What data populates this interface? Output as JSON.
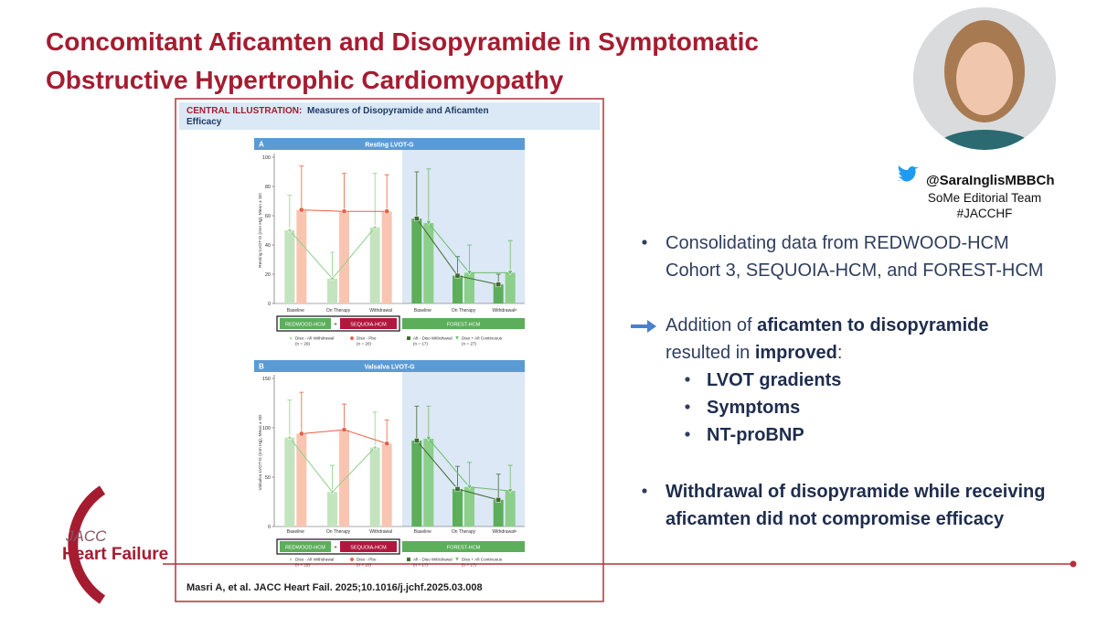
{
  "slide": {
    "title_lines": [
      "Concomitant Aficamten and Disopyramide in Symptomatic",
      "Obstructive Hypertrophic Cardiomyopathy"
    ],
    "author": {
      "handle": "@SaraInglisMBBCh",
      "team": "SoMe Editorial Team",
      "hashtag": "#JACCHF"
    },
    "bullets": [
      {
        "marker": "bullet",
        "lines": [
          [
            {
              "text": "Consolidating data from REDWOOD-HCM"
            }
          ],
          [
            {
              "text": "Cohort 3, SEQUOIA-HCM, and FOREST-HCM"
            }
          ]
        ]
      },
      {
        "marker": "arrow",
        "lines": [
          [
            {
              "text": "Addition of "
            },
            {
              "text": "aficamten to disopyramide",
              "bold": true
            }
          ],
          [
            {
              "text": "resulted in "
            },
            {
              "text": "improved",
              "bold": true
            },
            {
              "text": ":"
            }
          ]
        ]
      },
      {
        "marker": "sub",
        "lines": [
          [
            {
              "text": "LVOT gradients",
              "bold": true
            }
          ]
        ]
      },
      {
        "marker": "sub",
        "lines": [
          [
            {
              "text": "Symptoms",
              "bold": true
            }
          ]
        ]
      },
      {
        "marker": "sub",
        "lines": [
          [
            {
              "text": "NT-proBNP",
              "bold": true
            }
          ]
        ]
      },
      {
        "marker": "bullet",
        "lines": [
          [
            {
              "text": "Withdrawal of disopyramide while receiving",
              "bold": true
            }
          ],
          [
            {
              "text": "aficamten did not compromise efficacy",
              "bold": true
            }
          ]
        ]
      }
    ],
    "logo": {
      "top": "JACC",
      "bottom": "Heart Failure"
    }
  },
  "illustration": {
    "label": "CENTRAL ILLUSTRATION:",
    "title_lines": [
      "Measures of Disopyramide and Aficamten",
      "Efficacy"
    ],
    "citation": "Masri A, et al. JACC Heart Fail. 2025;10.1016/j.jchf.2025.03.008"
  },
  "chart_data": [
    {
      "type": "bar",
      "panel": "A",
      "title": "Resting LVOT-G",
      "ylabel": "Resting LVOT-G (mm Hg), Mean ± SD",
      "categories": [
        "Baseline",
        "On Therapy",
        "Withdrawal",
        "Baseline",
        "On Therapy",
        "Withdrawalᵃ"
      ],
      "ylim": [
        0,
        100
      ],
      "yticks": [
        0,
        20,
        40,
        60,
        80,
        100
      ],
      "groups": {
        "left": [
          "REDWOOD-HCM",
          "SEQUOIA-HCM"
        ],
        "joiner": "+",
        "right": "FOREST-HCM"
      },
      "series": [
        {
          "name": "Diso - Afi Withdrawal",
          "n": "(n = 29)",
          "color": "#8fd08a",
          "bar_color": "#c4e3bf",
          "marker": "star",
          "values": [
            50,
            17,
            52,
            null,
            null,
            null
          ],
          "errors": [
            24,
            18,
            37,
            null,
            null,
            null
          ]
        },
        {
          "name": "Diso - Pbo",
          "n": "(n = 20)",
          "color": "#e8604a",
          "bar_color": "#f9c5b1",
          "marker": "circle",
          "values": [
            64,
            63,
            63,
            null,
            null,
            null
          ],
          "errors": [
            30,
            26,
            25,
            null,
            null,
            null
          ]
        },
        {
          "name": "Afi - Diso Withdrawal",
          "n": "(n = 17)",
          "color": "#3f6b2e",
          "bar_color": "#5dae5b",
          "marker": "square",
          "values": [
            null,
            null,
            null,
            58,
            19,
            13
          ],
          "errors": [
            null,
            null,
            null,
            32,
            13,
            7
          ]
        },
        {
          "name": "Diso + Afi Continuous",
          "n": "(n = 27)",
          "color": "#6dbd6d",
          "bar_color": "#8ccf8a",
          "marker": "triangle",
          "values": [
            null,
            null,
            null,
            55,
            21,
            21
          ],
          "errors": [
            null,
            null,
            null,
            37,
            19,
            22
          ]
        }
      ]
    },
    {
      "type": "bar",
      "panel": "B",
      "title": "Valsalva LVOT-G",
      "ylabel": "Valsalva LVOT-G (mm Hg), Mean ± SD",
      "categories": [
        "Baseline",
        "On Therapy",
        "Withdrawal",
        "Baseline",
        "On Therapy",
        "Withdrawalᵃ"
      ],
      "ylim": [
        0,
        150
      ],
      "yticks": [
        0,
        50,
        100,
        150
      ],
      "groups": {
        "left": [
          "REDWOOD-HCM",
          "SEQUOIA-HCM"
        ],
        "joiner": "+",
        "right": "FOREST-HCM"
      },
      "series": [
        {
          "name": "Diso - Afi Withdrawal",
          "n": "(n = 29)",
          "color": "#8fd08a",
          "bar_color": "#c4e3bf",
          "marker": "star",
          "values": [
            90,
            35,
            80,
            null,
            null,
            null
          ],
          "errors": [
            38,
            27,
            36,
            null,
            null,
            null
          ]
        },
        {
          "name": "Diso - Pbo",
          "n": "(n = 20)",
          "color": "#e8604a",
          "bar_color": "#f9c5b1",
          "marker": "circle",
          "values": [
            94,
            98,
            84,
            null,
            null,
            null
          ],
          "errors": [
            42,
            26,
            24,
            null,
            null,
            null
          ]
        },
        {
          "name": "Afi - Diso Withdrawal",
          "n": "(n = 17)",
          "color": "#3f6b2e",
          "bar_color": "#5dae5b",
          "marker": "square",
          "values": [
            null,
            null,
            null,
            87,
            38,
            27
          ],
          "errors": [
            null,
            null,
            null,
            35,
            23,
            26
          ]
        },
        {
          "name": "Diso + Afi Continuous",
          "n": "(n = 27)",
          "color": "#6dbd6d",
          "bar_color": "#8ccf8a",
          "marker": "triangle",
          "values": [
            null,
            null,
            null,
            89,
            40,
            36
          ],
          "errors": [
            null,
            null,
            null,
            33,
            25,
            26
          ]
        }
      ]
    }
  ]
}
